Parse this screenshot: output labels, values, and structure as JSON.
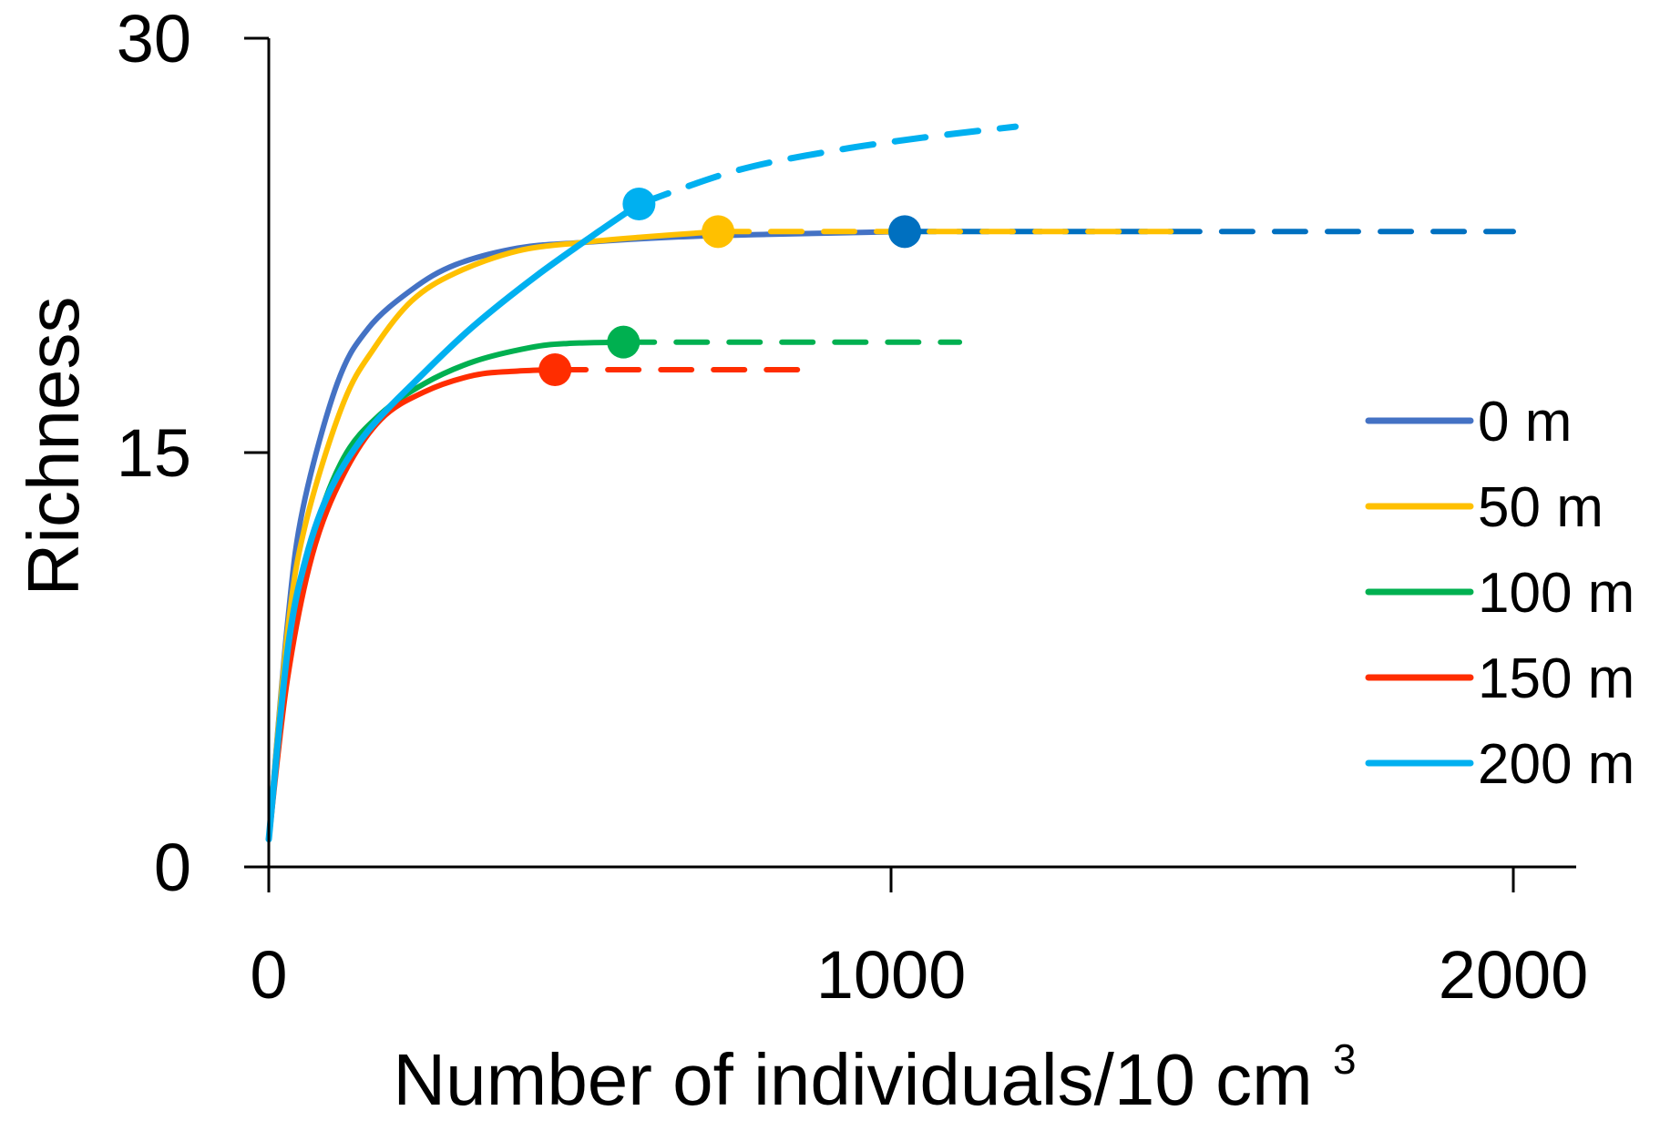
{
  "chart_data": {
    "type": "line",
    "title": "",
    "xlabel": "Number of individuals/10 cm",
    "xlabel_superscript": "3",
    "ylabel": "Richness",
    "xlim": [
      0,
      2100
    ],
    "ylim": [
      0,
      30
    ],
    "x_ticks": [
      0,
      1000,
      2000
    ],
    "y_ticks": [
      0,
      15,
      30
    ],
    "x_tick_labels": [
      "0",
      "1000",
      "2000"
    ],
    "y_tick_labels": [
      "0",
      "15",
      "30"
    ],
    "grid": false,
    "legend_position": "right",
    "series": [
      {
        "name": "0 m",
        "color": "#4472C4",
        "extrapolation_color": "#0070C0",
        "observed_point": [
          1022,
          23.0
        ],
        "interpolated": [
          [
            0,
            1.0
          ],
          [
            30,
            8.8
          ],
          [
            55,
            13.0
          ],
          [
            110,
            17.5
          ],
          [
            160,
            19.5
          ],
          [
            230,
            20.9
          ],
          [
            300,
            21.8
          ],
          [
            400,
            22.4
          ],
          [
            500,
            22.6
          ],
          [
            650,
            22.8
          ],
          [
            800,
            22.9
          ],
          [
            1022,
            23.0
          ]
        ],
        "extrapolated": [
          [
            1022,
            23.0
          ],
          [
            1300,
            23.0
          ],
          [
            1600,
            23.0
          ],
          [
            2000,
            23.0
          ]
        ]
      },
      {
        "name": "50 m",
        "color": "#FFC000",
        "extrapolation_color": "#FFC000",
        "observed_point": [
          722,
          23.0
        ],
        "interpolated": [
          [
            0,
            1.0
          ],
          [
            30,
            8.5
          ],
          [
            60,
            12.5
          ],
          [
            120,
            16.8
          ],
          [
            170,
            18.8
          ],
          [
            230,
            20.5
          ],
          [
            300,
            21.5
          ],
          [
            400,
            22.3
          ],
          [
            500,
            22.6
          ],
          [
            600,
            22.8
          ],
          [
            722,
            23.0
          ]
        ],
        "extrapolated": [
          [
            722,
            23.0
          ],
          [
            900,
            23.0
          ],
          [
            1150,
            23.0
          ],
          [
            1450,
            23.0
          ]
        ]
      },
      {
        "name": "100 m",
        "color": "#00B050",
        "extrapolation_color": "#00B050",
        "observed_point": [
          570,
          19.0
        ],
        "interpolated": [
          [
            0,
            1.0
          ],
          [
            30,
            7.2
          ],
          [
            70,
            11.8
          ],
          [
            120,
            14.8
          ],
          [
            180,
            16.4
          ],
          [
            250,
            17.5
          ],
          [
            330,
            18.3
          ],
          [
            420,
            18.8
          ],
          [
            480,
            18.95
          ],
          [
            570,
            19.0
          ]
        ],
        "extrapolated": [
          [
            570,
            19.0
          ],
          [
            750,
            19.0
          ],
          [
            1110,
            19.0
          ]
        ]
      },
      {
        "name": "150 m",
        "color": "#FF2D00",
        "extrapolation_color": "#FF2D00",
        "observed_point": [
          460,
          18.0
        ],
        "interpolated": [
          [
            0,
            1.0
          ],
          [
            30,
            6.8
          ],
          [
            70,
            11.3
          ],
          [
            120,
            14.2
          ],
          [
            180,
            16.2
          ],
          [
            250,
            17.2
          ],
          [
            330,
            17.8
          ],
          [
            400,
            17.95
          ],
          [
            460,
            18.0
          ]
        ],
        "extrapolated": [
          [
            460,
            18.0
          ],
          [
            650,
            18.0
          ],
          [
            880,
            18.0
          ]
        ]
      },
      {
        "name": "200 m",
        "color": "#00B0F0",
        "extrapolation_color": "#00B0F0",
        "observed_point": [
          595,
          24.0
        ],
        "interpolated": [
          [
            0,
            1.0
          ],
          [
            30,
            7.8
          ],
          [
            60,
            11.2
          ],
          [
            100,
            13.7
          ],
          [
            160,
            15.8
          ],
          [
            250,
            17.9
          ],
          [
            330,
            19.6
          ],
          [
            430,
            21.4
          ],
          [
            530,
            23.0
          ],
          [
            595,
            24.0
          ]
        ],
        "extrapolated": [
          [
            595,
            24.0
          ],
          [
            750,
            25.2
          ],
          [
            900,
            25.9
          ],
          [
            1050,
            26.4
          ],
          [
            1200,
            26.8
          ]
        ]
      }
    ]
  }
}
